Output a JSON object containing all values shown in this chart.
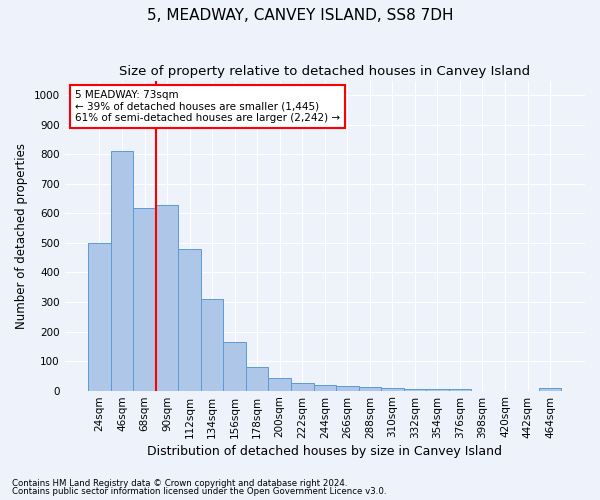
{
  "title": "5, MEADWAY, CANVEY ISLAND, SS8 7DH",
  "subtitle": "Size of property relative to detached houses in Canvey Island",
  "xlabel": "Distribution of detached houses by size in Canvey Island",
  "ylabel": "Number of detached properties",
  "footnote1": "Contains HM Land Registry data © Crown copyright and database right 2024.",
  "footnote2": "Contains public sector information licensed under the Open Government Licence v3.0.",
  "annotation_line1": "5 MEADWAY: 73sqm",
  "annotation_line2": "← 39% of detached houses are smaller (1,445)",
  "annotation_line3": "61% of semi-detached houses are larger (2,242) →",
  "bar_color": "#aec6e8",
  "bar_edge_color": "#5b9bd5",
  "vline_color": "red",
  "categories": [
    "24sqm",
    "46sqm",
    "68sqm",
    "90sqm",
    "112sqm",
    "134sqm",
    "156sqm",
    "178sqm",
    "200sqm",
    "222sqm",
    "244sqm",
    "266sqm",
    "288sqm",
    "310sqm",
    "332sqm",
    "354sqm",
    "376sqm",
    "398sqm",
    "420sqm",
    "442sqm",
    "464sqm"
  ],
  "values": [
    500,
    810,
    620,
    630,
    480,
    310,
    163,
    80,
    44,
    24,
    20,
    17,
    12,
    10,
    7,
    5,
    5,
    0,
    0,
    0,
    10
  ],
  "ylim": [
    0,
    1050
  ],
  "yticks": [
    0,
    100,
    200,
    300,
    400,
    500,
    600,
    700,
    800,
    900,
    1000
  ],
  "background_color": "#eef2fa",
  "plot_bg_color": "#eef2fa",
  "grid_color": "#ffffff",
  "title_fontsize": 11,
  "subtitle_fontsize": 9.5,
  "ylabel_fontsize": 8.5,
  "xlabel_fontsize": 9,
  "tick_fontsize": 7.5
}
